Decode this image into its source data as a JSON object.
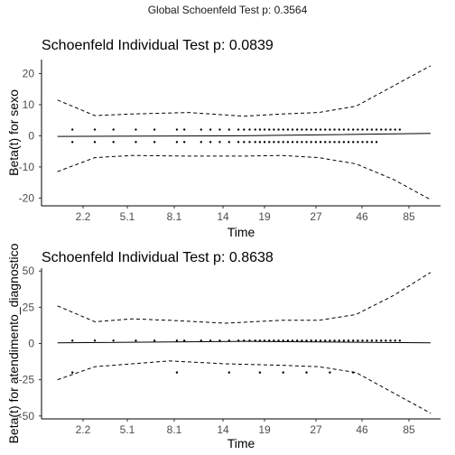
{
  "global_title": "Global Schoenfeld Test p: 0.3564",
  "chart_data": [
    {
      "type": "scatter",
      "title": "Schoenfeld Individual Test p: 0.0839",
      "xlabel": "Time",
      "ylabel": "Beta(t) for sexo",
      "ylim": [
        -22.5,
        24.5
      ],
      "x_tick_labels": [
        "2.2",
        "5.1",
        "8.1",
        "14",
        "19",
        "27",
        "46",
        "85"
      ],
      "yticks": [
        -20,
        -10,
        0,
        10,
        20
      ],
      "grid": false,
      "residual_levels": [
        2,
        -2
      ],
      "fit_line": {
        "x": [
          0,
          0.5,
          1
        ],
        "y": [
          -0.2,
          0,
          0.8
        ]
      },
      "ci_upper": {
        "x": [
          0,
          0.1,
          0.2,
          0.35,
          0.5,
          0.6,
          0.7,
          0.8,
          0.9,
          1
        ],
        "y": [
          11.5,
          6.5,
          7,
          7.5,
          6.3,
          7,
          7.5,
          9.5,
          16,
          22.5
        ]
      },
      "ci_lower": {
        "x": [
          0,
          0.1,
          0.2,
          0.35,
          0.5,
          0.6,
          0.7,
          0.8,
          0.9,
          1
        ],
        "y": [
          -11.5,
          -7,
          -6.3,
          -6.5,
          -6.5,
          -6.3,
          -7,
          -9,
          -14,
          -20.5
        ]
      }
    },
    {
      "type": "scatter",
      "title": "Schoenfeld Individual Test p: 0.8638",
      "xlabel": "Time",
      "ylabel": "Beta(t) for atendimento_diagnostico",
      "ylim": [
        -52,
        52
      ],
      "x_tick_labels": [
        "2.2",
        "5.1",
        "8.1",
        "14",
        "19",
        "27",
        "46",
        "85"
      ],
      "yticks": [
        -50,
        -25,
        0,
        25,
        50
      ],
      "grid": false,
      "residual_levels": [
        2,
        -20
      ],
      "fit_line": {
        "x": [
          0,
          0.5,
          1
        ],
        "y": [
          0.5,
          1.5,
          0.5
        ]
      },
      "ci_upper": {
        "x": [
          0,
          0.1,
          0.2,
          0.3,
          0.45,
          0.6,
          0.7,
          0.8,
          0.9,
          1
        ],
        "y": [
          26,
          15,
          17,
          16,
          14,
          16,
          16,
          20,
          33,
          49
        ]
      },
      "ci_lower": {
        "x": [
          0,
          0.1,
          0.2,
          0.3,
          0.45,
          0.6,
          0.7,
          0.8,
          0.9,
          1
        ],
        "y": [
          -25,
          -16,
          -14,
          -12,
          -14,
          -15,
          -16,
          -20,
          -34,
          -48
        ]
      }
    }
  ]
}
